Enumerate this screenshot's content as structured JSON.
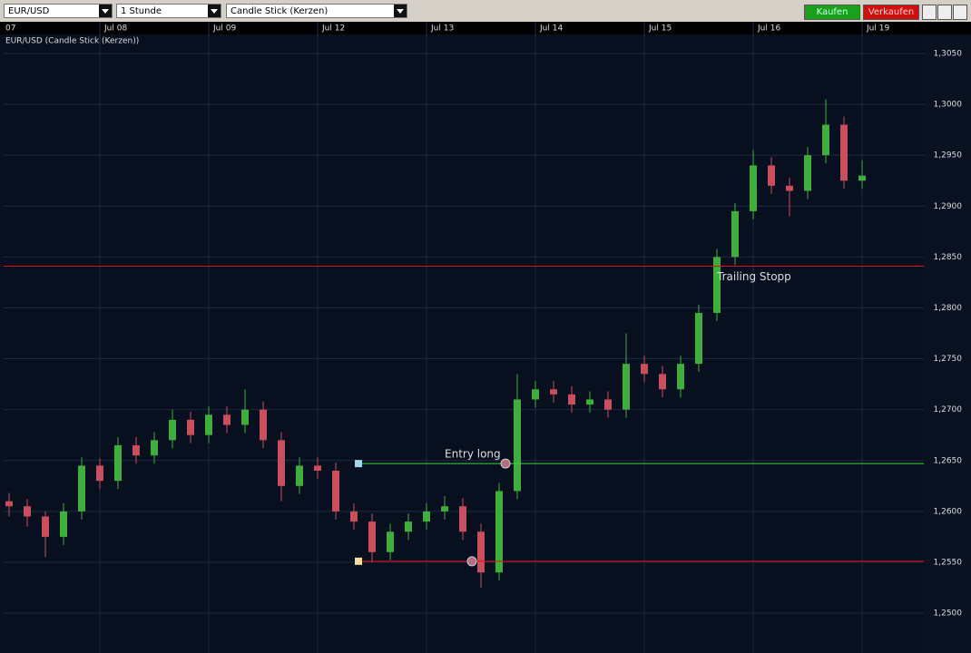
{
  "toolbar": {
    "symbol": "EUR/USD",
    "interval": "1 Stunde",
    "style": "Candle Stick (Kerzen)",
    "buy": "Kaufen",
    "sell": "Verkaufen"
  },
  "chart_data": {
    "type": "candlestick",
    "title": "EUR/USD (Candle Stick (Kerzen))",
    "up_color": "#3fae3f",
    "down_color": "#c8505e",
    "x": [
      -20,
      -16,
      -12,
      -8,
      -4,
      0,
      4,
      8,
      12,
      16,
      20,
      24,
      28,
      32,
      36,
      40,
      44,
      48,
      52,
      56,
      60,
      64,
      68,
      72,
      76,
      80,
      84,
      88,
      92,
      96,
      100,
      104,
      108,
      112,
      116,
      120,
      124,
      128,
      132,
      136,
      140,
      144,
      148,
      152,
      156,
      160,
      164,
      168
    ],
    "ohlc": [
      [
        1.261,
        1.2618,
        1.2595,
        1.2605
      ],
      [
        1.2605,
        1.2612,
        1.2585,
        1.2595
      ],
      [
        1.2595,
        1.26,
        1.2555,
        1.2575
      ],
      [
        1.2575,
        1.2608,
        1.2567,
        1.26
      ],
      [
        1.26,
        1.2653,
        1.2592,
        1.2645
      ],
      [
        1.2645,
        1.2652,
        1.2622,
        1.263
      ],
      [
        1.263,
        1.2673,
        1.2622,
        1.2665
      ],
      [
        1.2665,
        1.2673,
        1.2647,
        1.2655
      ],
      [
        1.2655,
        1.2678,
        1.2647,
        1.267
      ],
      [
        1.267,
        1.27,
        1.2662,
        1.269
      ],
      [
        1.269,
        1.2698,
        1.2667,
        1.2675
      ],
      [
        1.2675,
        1.2703,
        1.2667,
        1.2695
      ],
      [
        1.2695,
        1.2703,
        1.2677,
        1.2685
      ],
      [
        1.2685,
        1.272,
        1.2677,
        1.27
      ],
      [
        1.27,
        1.2708,
        1.2662,
        1.267
      ],
      [
        1.267,
        1.2678,
        1.261,
        1.2625
      ],
      [
        1.2625,
        1.2653,
        1.2617,
        1.2645
      ],
      [
        1.2645,
        1.2653,
        1.2632,
        1.264
      ],
      [
        1.264,
        1.2648,
        1.2592,
        1.26
      ],
      [
        1.26,
        1.2608,
        1.2582,
        1.259
      ],
      [
        1.259,
        1.2598,
        1.255,
        1.256
      ],
      [
        1.256,
        1.2588,
        1.2552,
        1.258
      ],
      [
        1.258,
        1.2598,
        1.2572,
        1.259
      ],
      [
        1.259,
        1.2608,
        1.2582,
        1.26
      ],
      [
        1.26,
        1.2615,
        1.2592,
        1.2605
      ],
      [
        1.2605,
        1.2613,
        1.2572,
        1.258
      ],
      [
        1.258,
        1.2588,
        1.2525,
        1.254
      ],
      [
        1.254,
        1.2628,
        1.2532,
        1.262
      ],
      [
        1.262,
        1.2735,
        1.2612,
        1.271
      ],
      [
        1.271,
        1.2728,
        1.2702,
        1.272
      ],
      [
        1.272,
        1.2728,
        1.2707,
        1.2715
      ],
      [
        1.2715,
        1.2723,
        1.2697,
        1.2705
      ],
      [
        1.2705,
        1.2718,
        1.2697,
        1.271
      ],
      [
        1.271,
        1.2718,
        1.2692,
        1.27
      ],
      [
        1.27,
        1.2775,
        1.2692,
        1.2745
      ],
      [
        1.2745,
        1.2753,
        1.2727,
        1.2735
      ],
      [
        1.2735,
        1.2743,
        1.2712,
        1.272
      ],
      [
        1.272,
        1.2753,
        1.2712,
        1.2745
      ],
      [
        1.2745,
        1.2803,
        1.2737,
        1.2795
      ],
      [
        1.2795,
        1.2858,
        1.2787,
        1.285
      ],
      [
        1.285,
        1.2903,
        1.2842,
        1.2895
      ],
      [
        1.2895,
        1.2955,
        1.2887,
        1.294
      ],
      [
        1.294,
        1.2948,
        1.2912,
        1.292
      ],
      [
        1.292,
        1.2928,
        1.289,
        1.2915
      ],
      [
        1.2915,
        1.2958,
        1.2907,
        1.295
      ],
      [
        1.295,
        1.3005,
        1.2942,
        1.298
      ],
      [
        1.298,
        1.2988,
        1.2917,
        1.2925
      ],
      [
        1.2925,
        1.2945,
        1.2917,
        1.293
      ]
    ],
    "xlim": [
      -21.2,
      181.6
    ],
    "xticks": [
      {
        "value": -24,
        "label": "07"
      },
      {
        "value": 0,
        "label": "Jul 08"
      },
      {
        "value": 24,
        "label": "Jul 09"
      },
      {
        "value": 48,
        "label": "Jul 12"
      },
      {
        "value": 72,
        "label": "Jul 13"
      },
      {
        "value": 96,
        "label": "Jul 14"
      },
      {
        "value": 120,
        "label": "Jul 15"
      },
      {
        "value": 144,
        "label": "Jul 16"
      },
      {
        "value": 168,
        "label": "Jul 19"
      }
    ],
    "ylim": [
      1.24644,
      1.30669
    ],
    "yticks": [
      {
        "value": 1.25,
        "label": "1,2500"
      },
      {
        "value": 1.255,
        "label": "1,2550"
      },
      {
        "value": 1.26,
        "label": "1,2600"
      },
      {
        "value": 1.265,
        "label": "1,2650"
      },
      {
        "value": 1.27,
        "label": "1,2700"
      },
      {
        "value": 1.275,
        "label": "1,2750"
      },
      {
        "value": 1.28,
        "label": "1,2800"
      },
      {
        "value": 1.285,
        "label": "1,2850"
      },
      {
        "value": 1.29,
        "label": "1,2900"
      },
      {
        "value": 1.295,
        "label": "1,2950"
      },
      {
        "value": 1.3,
        "label": "1,3000"
      },
      {
        "value": 1.305,
        "label": "1,3050"
      }
    ],
    "grid": true,
    "levels": [
      {
        "value": 1.2841,
        "label": "Trailing Stopp",
        "color": "#e01010",
        "label_x": 136
      },
      {
        "value": 1.2647,
        "label": "Entry long",
        "color": "#3cd23c",
        "start": 57,
        "label_x": 76
      },
      {
        "value": 1.2551,
        "color": "#e01010",
        "start": 57
      }
    ],
    "markers": [
      {
        "x": 89.4,
        "value": 1.2647
      },
      {
        "x": 82,
        "value": 1.2551
      }
    ]
  }
}
